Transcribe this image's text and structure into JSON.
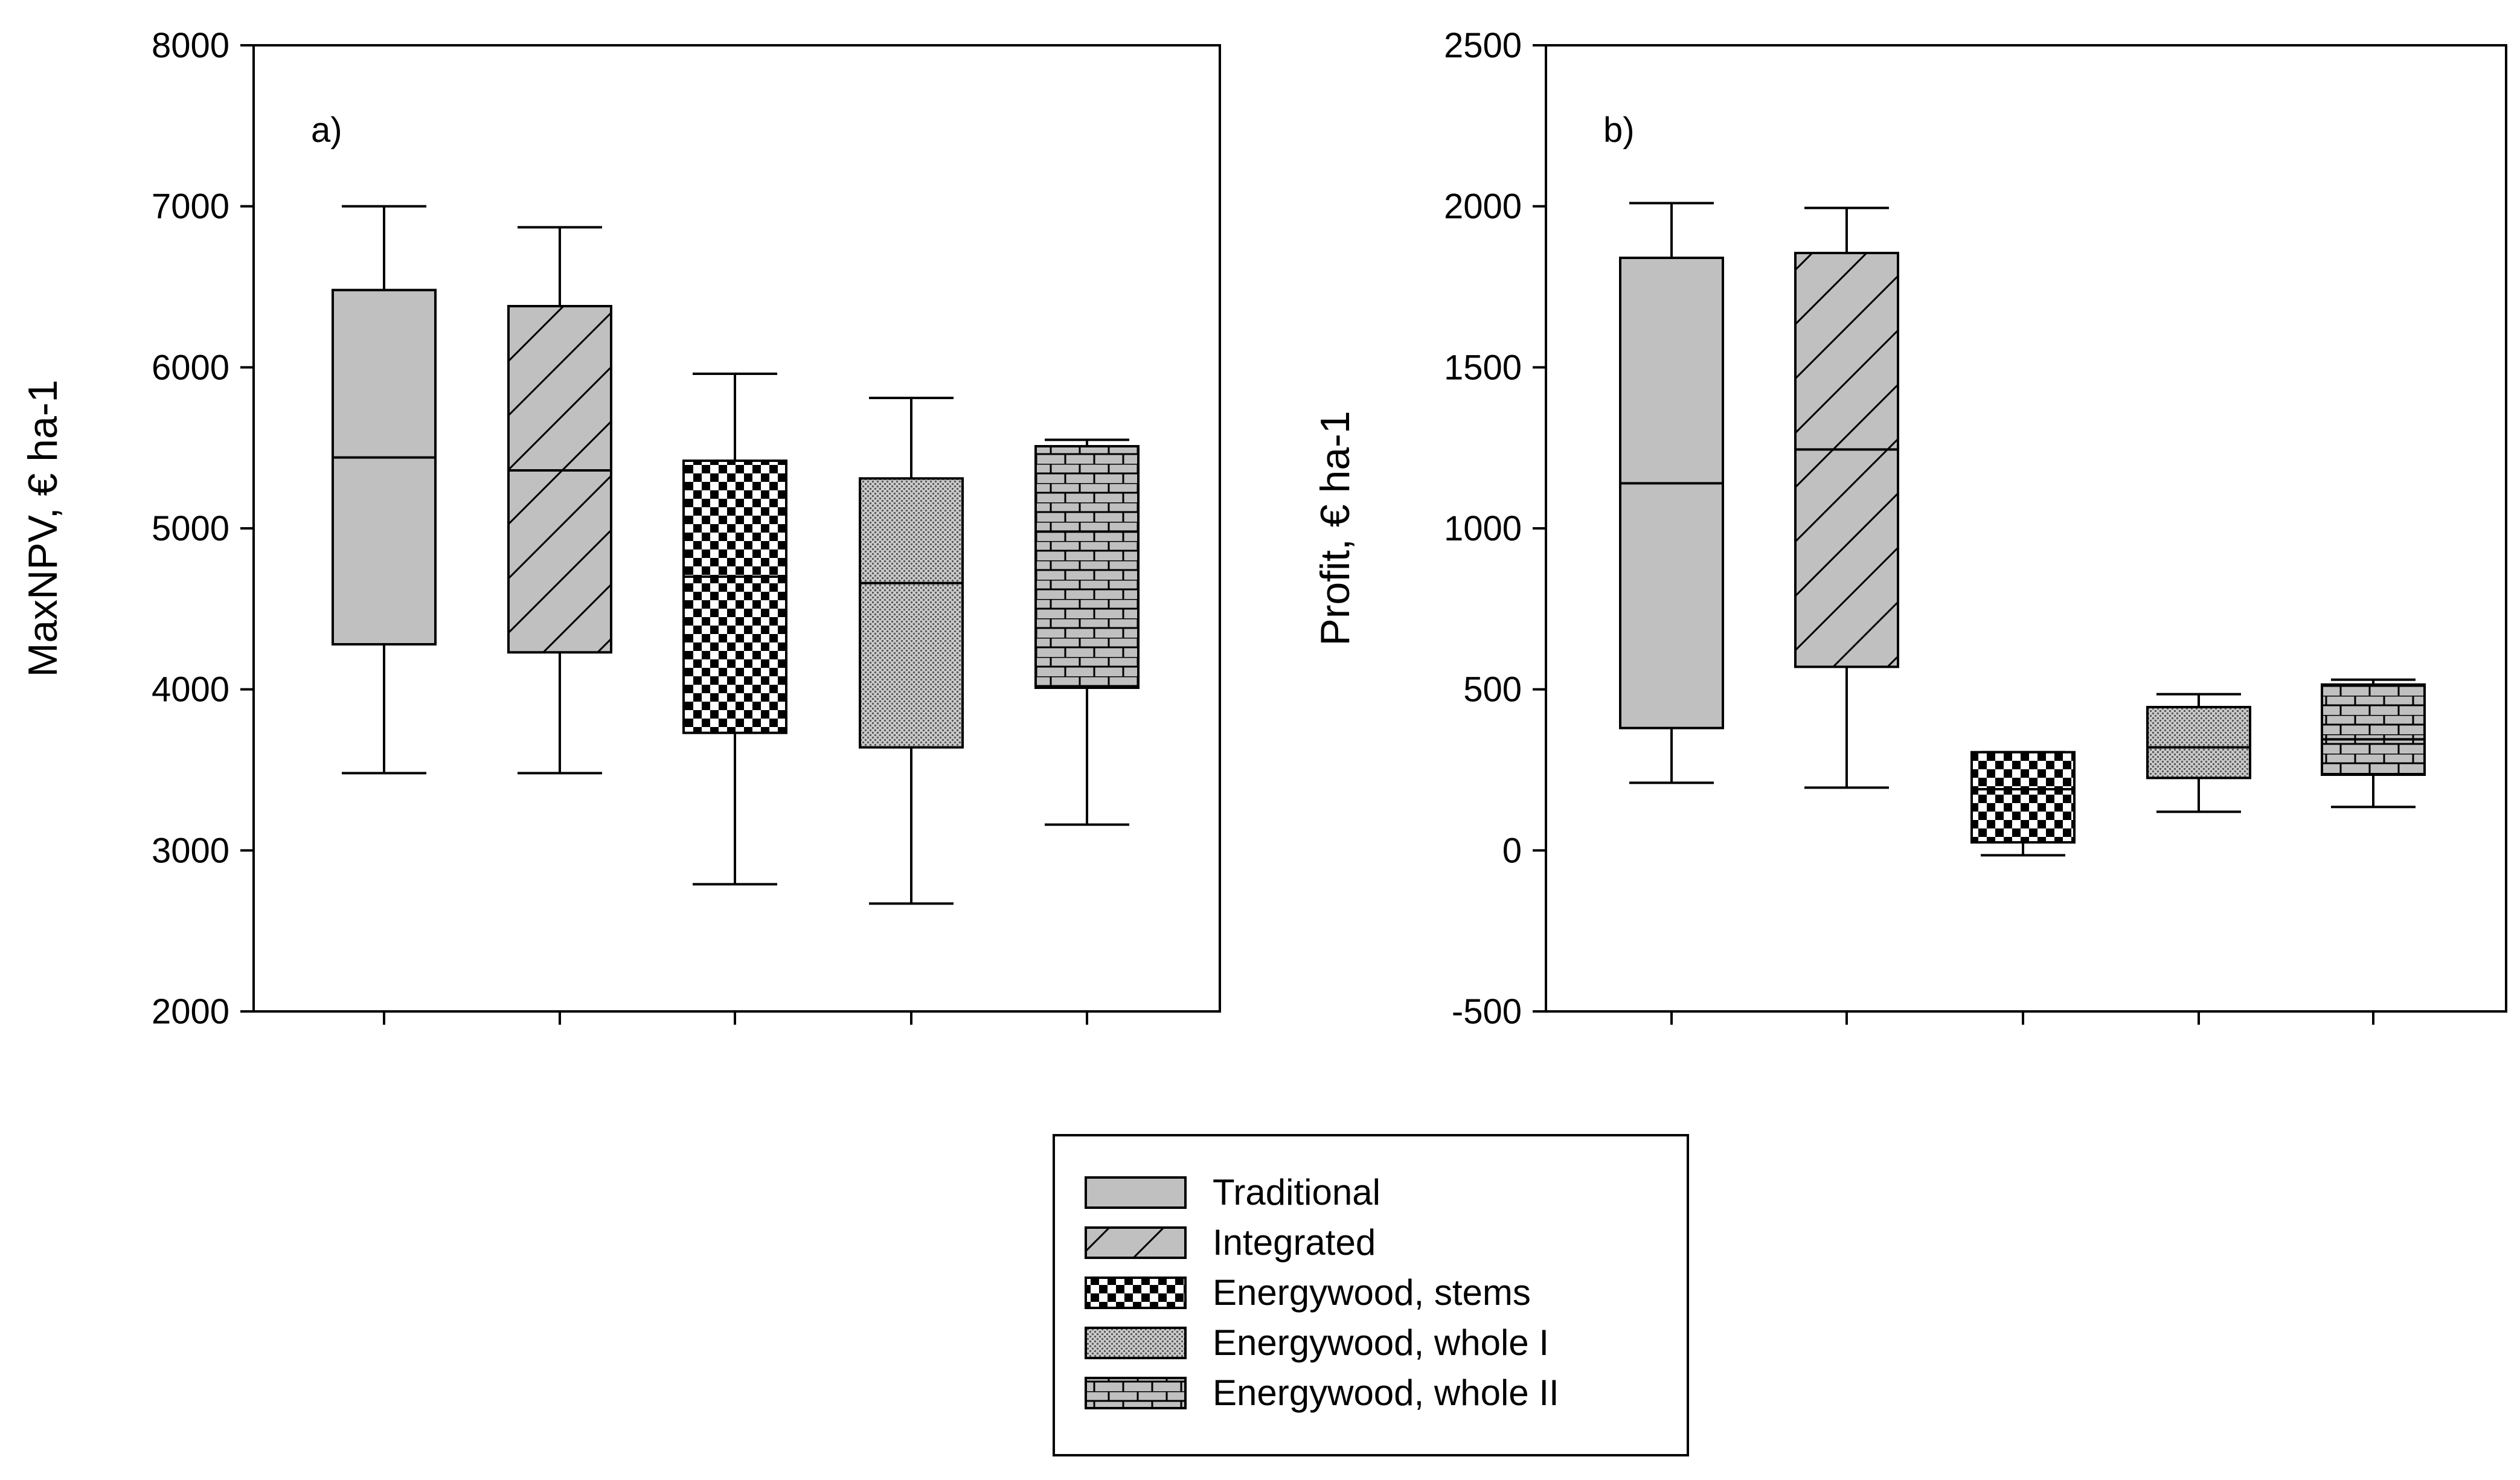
{
  "chart_data": [
    {
      "panel_label": "a)",
      "type": "box",
      "ylabel": "MaxNPV, € ha-1",
      "ylim": [
        2000,
        8000
      ],
      "yticks": [
        "2000",
        "3000",
        "4000",
        "5000",
        "6000",
        "7000",
        "8000"
      ],
      "ytick_values": [
        2000,
        3000,
        4000,
        5000,
        6000,
        7000,
        8000
      ],
      "series": [
        {
          "name": "Traditional",
          "whisker_low": 3480,
          "q1": 4280,
          "median": 5440,
          "q3": 6480,
          "whisker_high": 7000
        },
        {
          "name": "Integrated",
          "whisker_low": 3480,
          "q1": 4230,
          "median": 5360,
          "q3": 6380,
          "whisker_high": 6870
        },
        {
          "name": "Energywood, stems",
          "whisker_low": 2790,
          "q1": 3730,
          "median": 4700,
          "q3": 5420,
          "whisker_high": 5960
        },
        {
          "name": "Energywood, whole I",
          "whisker_low": 2670,
          "q1": 3640,
          "median": 4660,
          "q3": 5310,
          "whisker_high": 5810
        },
        {
          "name": "Energywood, whole II",
          "whisker_low": 3160,
          "q1": 4010,
          "median": 4980,
          "q3": 5510,
          "whisker_high": 5550
        }
      ]
    },
    {
      "panel_label": "b)",
      "type": "box",
      "ylabel": "Profit, € ha-1",
      "ylim": [
        -500,
        2500
      ],
      "yticks": [
        "-500",
        "0",
        "500",
        "1000",
        "1500",
        "2000",
        "2500"
      ],
      "ytick_values": [
        -500,
        0,
        500,
        1000,
        1500,
        2000,
        2500
      ],
      "series": [
        {
          "name": "Traditional",
          "whisker_low": 210,
          "q1": 380,
          "median": 1140,
          "q3": 1840,
          "whisker_high": 2010
        },
        {
          "name": "Integrated",
          "whisker_low": 195,
          "q1": 570,
          "median": 1245,
          "q3": 1855,
          "whisker_high": 1995
        },
        {
          "name": "Energywood, stems",
          "whisker_low": -15,
          "q1": 25,
          "median": 190,
          "q3": 305,
          "whisker_high": 305
        },
        {
          "name": "Energywood, whole I",
          "whisker_low": 120,
          "q1": 225,
          "median": 320,
          "q3": 445,
          "whisker_high": 485
        },
        {
          "name": "Energywood, whole II",
          "whisker_low": 135,
          "q1": 235,
          "median": 345,
          "q3": 515,
          "whisker_high": 530
        }
      ]
    }
  ],
  "legend": {
    "items": [
      {
        "label": "Traditional",
        "pattern": "solid-grey"
      },
      {
        "label": "Integrated",
        "pattern": "diagonal-hatch"
      },
      {
        "label": "Energywood, stems",
        "pattern": "checkerboard"
      },
      {
        "label": "Energywood, whole I",
        "pattern": "fine-dots"
      },
      {
        "label": "Energywood, whole II",
        "pattern": "brick"
      }
    ]
  },
  "colors": {
    "box_fill": "#c0c0c0",
    "line": "#000000",
    "background": "#ffffff"
  }
}
